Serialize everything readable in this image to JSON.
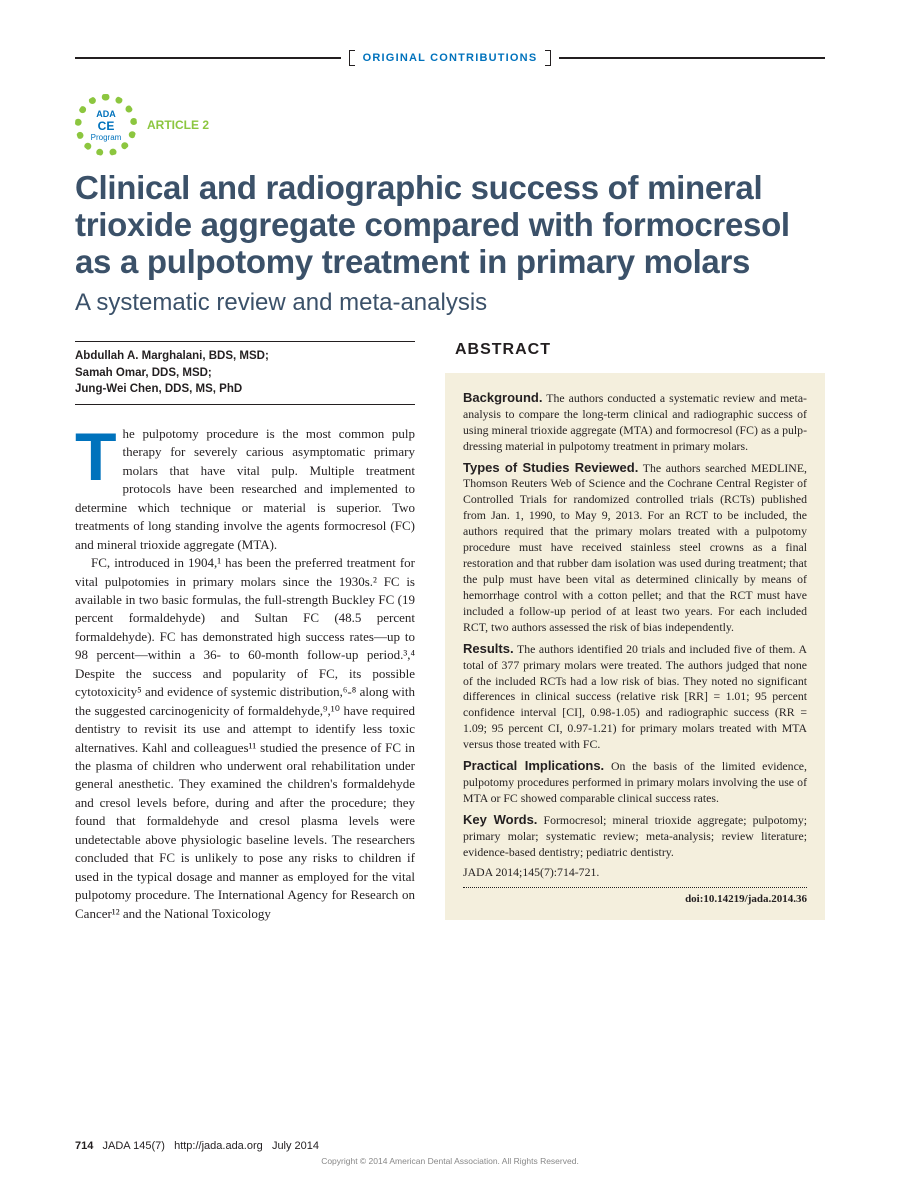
{
  "header": {
    "section_label": "ORIGINAL CONTRIBUTIONS",
    "badge": {
      "line1": "ADA",
      "line2": "CE",
      "line3": "Program"
    },
    "article_tag": "ARTICLE 2"
  },
  "title": "Clinical and radiographic success of mineral trioxide aggregate compared with formocresol as a pulpotomy treatment in primary molars",
  "subtitle": "A systematic review and meta-analysis",
  "authors": [
    "Abdullah A. Marghalani, BDS, MSD;",
    "Samah Omar, DDS, MSD;",
    "Jung-Wei Chen, DDS, MS, PhD"
  ],
  "body": {
    "p1_first": "T",
    "p1_rest": "he pulpotomy procedure is the most common pulp therapy for severely carious asymptomatic primary molars that have vital pulp. Multiple treatment protocols have been researched and implemented to determine which technique or material is superior. Two treatments of long standing involve the agents formocresol (FC) and mineral trioxide aggregate (MTA).",
    "p2": "FC, introduced in 1904,¹ has been the preferred treatment for vital pulpotomies in primary molars since the 1930s.² FC is available in two basic formulas, the full-strength Buckley FC (19 percent formaldehyde) and Sultan FC (48.5 percent formaldehyde). FC has demonstrated high success rates—up to 98 percent—within a 36- to 60-month follow-up period.³,⁴ Despite the success and popularity of FC, its possible cytotoxicity⁵ and evidence of systemic distribution,⁶-⁸ along with the suggested carcinogenicity of formaldehyde,⁹,¹⁰ have required dentistry to revisit its use and attempt to identify less toxic alternatives. Kahl and colleagues¹¹ studied the presence of FC in the plasma of children who underwent oral rehabilitation under general anesthetic. They examined the children's formaldehyde and cresol levels before, during and after the procedure; they found that formaldehyde and cresol plasma levels were undetectable above physiologic baseline levels. The researchers concluded that FC is unlikely to pose any risks to children if used in the typical dosage and manner as employed for the vital pulpotomy procedure. The International Agency for Research on Cancer¹² and the National Toxicology"
  },
  "abstract": {
    "heading": "ABSTRACT",
    "sections": [
      {
        "label": "Background.",
        "text": "The authors conducted a systematic review and meta-analysis to compare the long-term clinical and radiographic success of using mineral trioxide aggregate (MTA) and formocresol (FC) as a pulp-dressing material in pulpotomy treatment in primary molars."
      },
      {
        "label": "Types of Studies Reviewed.",
        "text": "The authors searched MEDLINE, Thomson Reuters Web of Science and the Cochrane Central Register of Controlled Trials for randomized controlled trials (RCTs) published from Jan. 1, 1990, to May 9, 2013. For an RCT to be included, the authors required that the primary molars treated with a pulpotomy procedure must have received stainless steel crowns as a final restoration and that rubber dam isolation was used during treatment; that the pulp must have been vital as determined clinically by means of hemorrhage control with a cotton pellet; and that the RCT must have included a follow-up period of at least two years. For each included RCT, two authors assessed the risk of bias independently."
      },
      {
        "label": "Results.",
        "text": "The authors identified 20 trials and included five of them. A total of 377 primary molars were treated. The authors judged that none of the included RCTs had a low risk of bias. They noted no significant differences in clinical success (relative risk [RR] = 1.01; 95 percent confidence interval [CI], 0.98-1.05) and radiographic success (RR = 1.09; 95 percent CI, 0.97-1.21) for primary molars treated with MTA versus those treated with FC."
      },
      {
        "label": "Practical Implications.",
        "text": "On the basis of the limited evidence, pulpotomy procedures performed in primary molars involving the use of MTA or FC showed comparable clinical success rates."
      },
      {
        "label": "Key Words.",
        "text": "Formocresol; mineral trioxide aggregate; pulpotomy; primary molar; systematic review; meta-analysis; review literature; evidence-based dentistry; pediatric dentistry."
      }
    ],
    "citation": "JADA 2014;145(7):714-721.",
    "doi": "doi:10.14219/jada.2014.36"
  },
  "footer": {
    "page": "714",
    "journal": "JADA 145(7)",
    "url": "http://jada.ada.org",
    "date": "July 2014",
    "copyright": "Copyright © 2014 American Dental Association. All Rights Reserved."
  },
  "colors": {
    "blue": "#0072bc",
    "slate": "#3b5169",
    "green": "#8cc63f",
    "cream": "#f4efdd"
  }
}
